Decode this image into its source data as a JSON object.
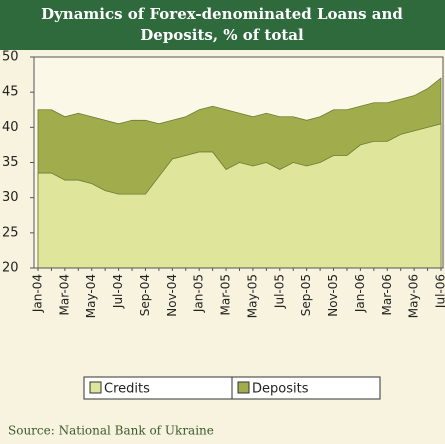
{
  "chart_data": {
    "type": "area",
    "title": [
      "Dynamics of Forex-denominated Loans and",
      "Deposits, % of total"
    ],
    "categories": [
      "Jan-04",
      null,
      "Mar-04",
      null,
      "May-04",
      null,
      "Jul-04",
      null,
      "Sep-04",
      null,
      "Nov-04",
      null,
      "Jan-05",
      null,
      "Mar-05",
      null,
      "May-05",
      null,
      "Jul-05",
      null,
      "Sep-05",
      null,
      "Nov-05",
      null,
      "Jan-06",
      null,
      "Mar-06",
      null,
      "May-06",
      null,
      "Jul-06"
    ],
    "series": [
      {
        "name": "Credits",
        "color": "#dfe59b",
        "values": [
          33.5,
          33.5,
          32.5,
          32.5,
          32,
          31,
          30.5,
          30.5,
          30.5,
          33,
          35.5,
          36,
          36.5,
          36.5,
          34,
          35,
          34.5,
          35,
          34,
          35,
          34.5,
          35,
          36,
          36,
          37.5,
          38,
          38,
          39,
          39.5,
          40,
          40.5
        ]
      },
      {
        "name": "Deposits",
        "color": "#a1ac4d",
        "values": [
          42.5,
          42.5,
          41.5,
          42,
          41.5,
          41,
          40.5,
          41,
          41,
          40.5,
          41,
          41.5,
          42.5,
          43,
          42.5,
          42,
          41.5,
          42,
          41.5,
          41.5,
          41,
          41.5,
          42.5,
          42.5,
          43,
          43.5,
          43.5,
          44,
          44.5,
          45.5,
          47
        ]
      }
    ],
    "ylim": [
      20,
      50
    ],
    "yticks": [
      20,
      25,
      30,
      35,
      40,
      45,
      50
    ],
    "source": "Source: National Bank of Ukraine"
  }
}
